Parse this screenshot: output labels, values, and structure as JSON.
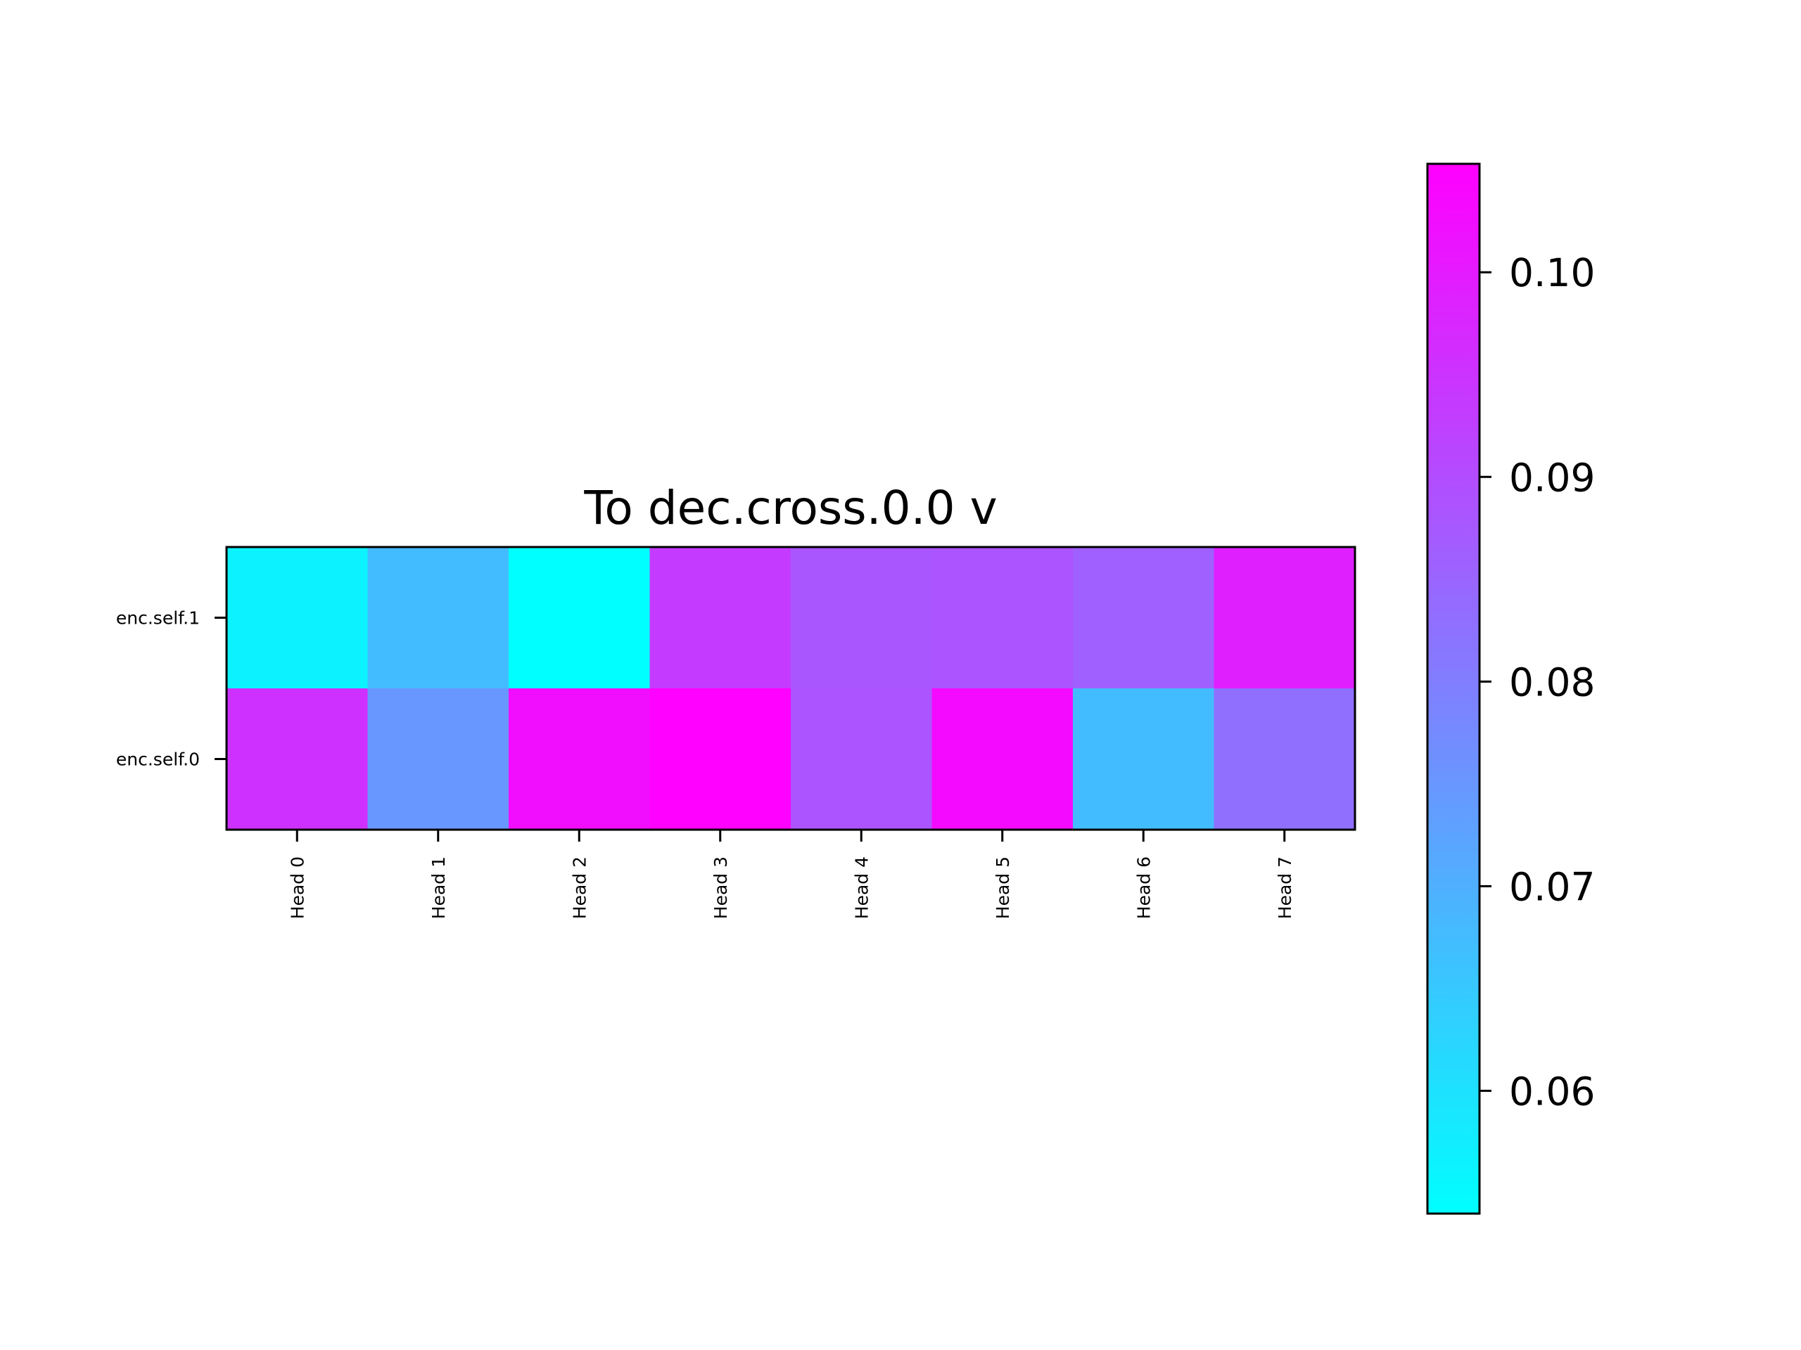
{
  "chart_data": {
    "type": "heatmap",
    "title": "To dec.cross.0.0 v",
    "xlabel": "",
    "ylabel": "",
    "x_categories": [
      "Head 0",
      "Head 1",
      "Head 2",
      "Head 3",
      "Head 4",
      "Head 5",
      "Head 6",
      "Head 7"
    ],
    "y_categories": [
      "enc.self.1",
      "enc.self.0"
    ],
    "values": [
      [
        0.0565,
        0.0675,
        0.054,
        0.0935,
        0.088,
        0.0885,
        0.086,
        0.099
      ],
      [
        0.0955,
        0.075,
        0.1025,
        0.105,
        0.0885,
        0.103,
        0.0675,
        0.083
      ]
    ],
    "colormap": "cool",
    "colormap_colors": [
      "#00ffff",
      "#ff00ff"
    ],
    "vmin": 0.054,
    "vmax": 0.1053,
    "colorbar": {
      "ticks": [
        0.06,
        0.07,
        0.08,
        0.09,
        0.1
      ],
      "tick_labels": [
        "0.06",
        "0.07",
        "0.08",
        "0.09",
        "0.10"
      ]
    },
    "grid": false,
    "legend": "none"
  }
}
